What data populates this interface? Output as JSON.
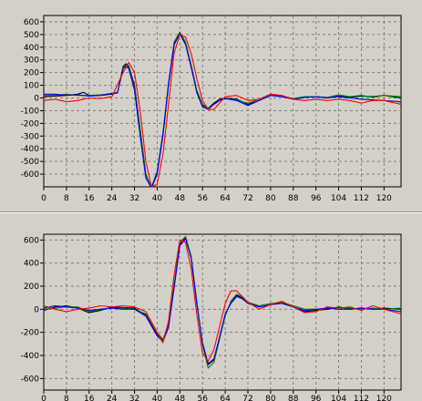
{
  "chart_data": [
    {
      "type": "line",
      "title": "",
      "xlabel": "",
      "ylabel": "",
      "xlim": [
        0,
        126
      ],
      "ylim": [
        -700,
        650
      ],
      "grid": true,
      "x_ticks": [
        0,
        8,
        16,
        24,
        32,
        40,
        48,
        56,
        64,
        72,
        80,
        88,
        96,
        104,
        112,
        120
      ],
      "y_ticks": [
        600,
        500,
        400,
        300,
        200,
        100,
        0,
        -100,
        -200,
        -300,
        -400,
        -500,
        -600
      ],
      "series": [
        {
          "color": "#000000",
          "x": [
            0,
            4,
            8,
            12,
            14,
            16,
            20,
            24,
            26,
            28,
            29,
            30,
            32,
            34,
            36,
            38,
            40,
            42,
            44,
            46,
            48,
            50,
            52,
            54,
            56,
            58,
            60,
            62,
            64,
            68,
            72,
            76,
            80,
            84,
            88,
            92,
            96,
            100,
            104,
            108,
            112,
            116,
            120,
            126
          ],
          "y": [
            10,
            15,
            20,
            30,
            45,
            20,
            20,
            30,
            40,
            250,
            270,
            250,
            100,
            -250,
            -600,
            -710,
            -600,
            -300,
            100,
            420,
            510,
            430,
            250,
            50,
            -60,
            -80,
            -40,
            -10,
            0,
            -10,
            -50,
            -20,
            20,
            10,
            -10,
            5,
            10,
            0,
            15,
            5,
            15,
            10,
            20,
            0
          ]
        },
        {
          "color": "#008000",
          "x": [
            0,
            4,
            8,
            12,
            16,
            20,
            24,
            26,
            28,
            29,
            30,
            32,
            34,
            36,
            38,
            40,
            42,
            44,
            46,
            48,
            50,
            52,
            54,
            56,
            58,
            60,
            62,
            64,
            68,
            72,
            76,
            80,
            84,
            88,
            92,
            96,
            100,
            104,
            108,
            112,
            116,
            120,
            126
          ],
          "y": [
            20,
            20,
            30,
            20,
            20,
            25,
            35,
            45,
            240,
            260,
            240,
            80,
            -270,
            -610,
            -700,
            -580,
            -280,
            120,
            440,
            520,
            440,
            260,
            60,
            -50,
            -80,
            -50,
            -20,
            0,
            -20,
            -40,
            -10,
            30,
            15,
            -5,
            10,
            10,
            5,
            25,
            10,
            20,
            5,
            20,
            10
          ]
        },
        {
          "color": "#0000ff",
          "x": [
            0,
            4,
            8,
            12,
            16,
            20,
            24,
            26,
            28,
            29,
            30,
            32,
            34,
            36,
            38,
            40,
            42,
            44,
            46,
            48,
            50,
            52,
            54,
            56,
            58,
            60,
            62,
            64,
            68,
            72,
            76,
            80,
            84,
            88,
            92,
            96,
            100,
            104,
            108,
            112,
            116,
            120,
            126
          ],
          "y": [
            30,
            30,
            20,
            25,
            15,
            20,
            35,
            40,
            230,
            250,
            230,
            60,
            -300,
            -630,
            -710,
            -590,
            -290,
            110,
            430,
            505,
            420,
            240,
            40,
            -70,
            -90,
            -50,
            -20,
            -5,
            -20,
            -60,
            -20,
            20,
            10,
            -10,
            5,
            10,
            0,
            10,
            0,
            -10,
            -15,
            -20,
            -30
          ]
        },
        {
          "color": "#ff0000",
          "x": [
            0,
            4,
            8,
            12,
            16,
            20,
            24,
            28,
            30,
            32,
            34,
            36,
            38,
            40,
            42,
            44,
            46,
            48,
            50,
            52,
            54,
            56,
            58,
            60,
            62,
            64,
            68,
            72,
            76,
            80,
            84,
            88,
            92,
            96,
            100,
            104,
            108,
            112,
            116,
            120,
            126
          ],
          "y": [
            -20,
            -10,
            -30,
            -20,
            0,
            -5,
            10,
            200,
            280,
            200,
            -100,
            -500,
            -700,
            -680,
            -450,
            -50,
            360,
            500,
            480,
            350,
            150,
            -20,
            -90,
            -90,
            -40,
            10,
            20,
            -20,
            -10,
            30,
            20,
            -10,
            -20,
            -10,
            -20,
            -10,
            -20,
            -40,
            -20,
            -20,
            -50
          ]
        }
      ]
    },
    {
      "type": "line",
      "title": "",
      "xlabel": "",
      "ylabel": "",
      "xlim": [
        0,
        126
      ],
      "ylim": [
        -700,
        650
      ],
      "grid": true,
      "x_ticks": [
        0,
        8,
        16,
        24,
        32,
        40,
        48,
        56,
        64,
        72,
        80,
        88,
        96,
        104,
        112,
        120
      ],
      "y_ticks": [
        600,
        400,
        200,
        0,
        -200,
        -400,
        -600
      ],
      "x_tick_labels": [
        "0",
        "8",
        "16",
        "24",
        "32",
        "40",
        "48",
        "56",
        "64",
        "72",
        "80",
        "88",
        "96",
        "104",
        "112",
        "120"
      ],
      "series": [
        {
          "color": "#000000",
          "x": [
            0,
            4,
            8,
            12,
            16,
            20,
            24,
            28,
            32,
            36,
            40,
            42,
            44,
            46,
            48,
            50,
            52,
            54,
            56,
            58,
            60,
            62,
            64,
            66,
            68,
            70,
            72,
            76,
            80,
            84,
            88,
            92,
            96,
            100,
            104,
            108,
            112,
            116,
            120,
            126
          ],
          "y": [
            -10,
            20,
            30,
            10,
            -30,
            -10,
            20,
            15,
            10,
            -50,
            -220,
            -270,
            -150,
            200,
            560,
            620,
            450,
            50,
            -300,
            -480,
            -440,
            -250,
            -50,
            60,
            120,
            100,
            60,
            20,
            40,
            60,
            20,
            -20,
            -10,
            0,
            20,
            0,
            10,
            0,
            10,
            0
          ]
        },
        {
          "color": "#008000",
          "x": [
            0,
            4,
            8,
            12,
            16,
            20,
            24,
            28,
            32,
            36,
            40,
            42,
            44,
            46,
            48,
            50,
            52,
            54,
            56,
            58,
            60,
            62,
            64,
            66,
            68,
            70,
            72,
            76,
            80,
            84,
            88,
            92,
            96,
            100,
            104,
            108,
            112,
            116,
            120,
            126
          ],
          "y": [
            0,
            10,
            20,
            20,
            -20,
            0,
            10,
            10,
            0,
            -40,
            -200,
            -260,
            -140,
            220,
            580,
            630,
            460,
            60,
            -310,
            -510,
            -460,
            -260,
            -60,
            70,
            130,
            110,
            60,
            30,
            50,
            60,
            30,
            0,
            0,
            10,
            10,
            10,
            0,
            10,
            0,
            10
          ]
        },
        {
          "color": "#0000ff",
          "x": [
            0,
            4,
            8,
            12,
            16,
            20,
            24,
            28,
            32,
            36,
            40,
            42,
            44,
            46,
            48,
            50,
            52,
            54,
            56,
            58,
            60,
            62,
            64,
            66,
            68,
            70,
            72,
            76,
            80,
            84,
            88,
            92,
            96,
            100,
            104,
            108,
            112,
            116,
            120,
            126
          ],
          "y": [
            10,
            30,
            20,
            10,
            -10,
            0,
            10,
            0,
            0,
            -60,
            -230,
            -280,
            -160,
            190,
            550,
            610,
            440,
            40,
            -290,
            -470,
            -430,
            -240,
            -40,
            50,
            110,
            90,
            50,
            20,
            40,
            50,
            20,
            -10,
            0,
            10,
            0,
            0,
            10,
            0,
            0,
            -20
          ]
        },
        {
          "color": "#ff0000",
          "x": [
            0,
            4,
            8,
            12,
            16,
            20,
            24,
            28,
            32,
            36,
            40,
            42,
            44,
            46,
            48,
            50,
            52,
            54,
            56,
            58,
            60,
            62,
            64,
            66,
            68,
            70,
            72,
            76,
            80,
            84,
            88,
            92,
            96,
            100,
            104,
            108,
            112,
            116,
            120,
            126
          ],
          "y": [
            30,
            0,
            -20,
            0,
            10,
            30,
            20,
            30,
            20,
            -20,
            -200,
            -290,
            -100,
            300,
            600,
            580,
            350,
            -50,
            -380,
            -450,
            -350,
            -150,
            50,
            160,
            160,
            110,
            60,
            0,
            40,
            70,
            20,
            -30,
            -20,
            20,
            10,
            20,
            -10,
            30,
            0,
            -40
          ]
        }
      ]
    }
  ]
}
